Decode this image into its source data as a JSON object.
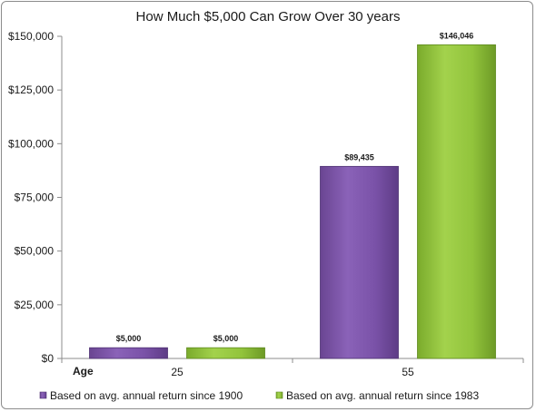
{
  "chart_data": {
    "type": "bar",
    "title": "How Much $5,000 Can Grow Over 30 years",
    "x_axis_prefix_label": "Age",
    "categories": [
      "25",
      "55"
    ],
    "series": [
      {
        "name": "Based on avg. annual  return since 1900",
        "values": [
          5000,
          89435
        ],
        "data_labels": [
          "$5,000",
          "$89,435"
        ],
        "color": "#7d55ab"
      },
      {
        "name": "Based on avg. annual  return since 1983",
        "values": [
          5000,
          146046
        ],
        "data_labels": [
          "$5,000",
          "$146,046"
        ],
        "color": "#8fc23a"
      }
    ],
    "ylim": [
      0,
      150000
    ],
    "yticks": [
      0,
      25000,
      50000,
      75000,
      100000,
      125000,
      150000
    ],
    "ytick_labels": [
      "$0",
      "$25,000",
      "$50,000",
      "$75,000",
      "$100,000",
      "$125,000",
      "$150,000"
    ],
    "grid": false,
    "legend_position": "bottom"
  }
}
